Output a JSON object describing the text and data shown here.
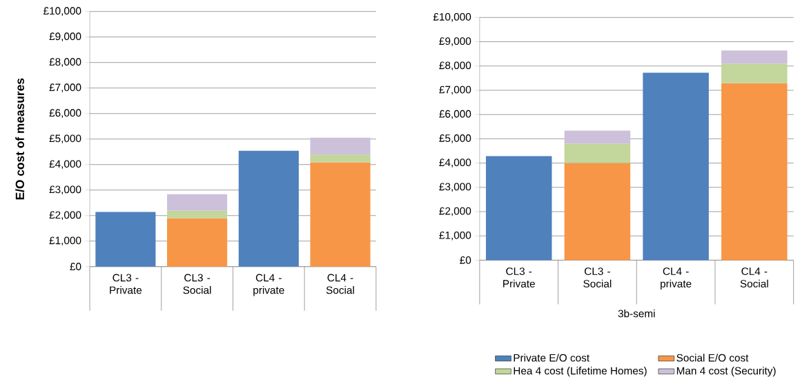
{
  "chart_data": [
    {
      "type": "bar",
      "stacked": true,
      "ylabel": "E/O cost of measures",
      "categories": [
        "CL3 - Private",
        "CL3 - Social",
        "CL4 - private",
        "CL4 - Social"
      ],
      "series": [
        {
          "color": "#4f81bd",
          "values": [
            2140,
            null,
            4540,
            null
          ]
        },
        {
          "color": "#f79646",
          "values": [
            null,
            1890,
            null,
            4090
          ]
        },
        {
          "color": "#c3d69b",
          "values": [
            null,
            300,
            null,
            300
          ]
        },
        {
          "color": "#ccc0da",
          "values": [
            null,
            650,
            null,
            660
          ]
        }
      ],
      "ylim": [
        0,
        10000
      ],
      "yticks": [
        {
          "value": 0,
          "label": "£0"
        },
        {
          "value": 1000,
          "label": "£1,000"
        },
        {
          "value": 2000,
          "label": "£2,000"
        },
        {
          "value": 3000,
          "label": "£3,000"
        },
        {
          "value": 4000,
          "label": "£4,000"
        },
        {
          "value": 5000,
          "label": "£5,000"
        },
        {
          "value": 6000,
          "label": "£6,000"
        },
        {
          "value": 7000,
          "label": "£7,000"
        },
        {
          "value": 8000,
          "label": "£8,000"
        },
        {
          "value": 9000,
          "label": "£9,000"
        },
        {
          "value": 10000,
          "label": "£10,000"
        }
      ],
      "grid": "y"
    },
    {
      "type": "bar",
      "stacked": true,
      "xlabel": "3b-semi",
      "categories": [
        "CL3 - Private",
        "CL3 - Social",
        "CL4 - private",
        "CL4 - Social"
      ],
      "series": [
        {
          "name": "Private E/O cost",
          "color": "#4f81bd",
          "values": [
            4290,
            null,
            7720,
            null
          ]
        },
        {
          "name": "Social E/O cost",
          "color": "#f79646",
          "values": [
            null,
            4000,
            null,
            7290
          ]
        },
        {
          "name": "Hea 4 cost (Lifetime Homes)",
          "color": "#c3d69b",
          "values": [
            null,
            800,
            null,
            800
          ]
        },
        {
          "name": "Man 4 cost (Security)",
          "color": "#ccc0da",
          "values": [
            null,
            540,
            null,
            550
          ]
        }
      ],
      "ylim": [
        0,
        10000
      ],
      "yticks": [
        {
          "value": 0,
          "label": "£0"
        },
        {
          "value": 1000,
          "label": "£1,000"
        },
        {
          "value": 2000,
          "label": "£2,000"
        },
        {
          "value": 3000,
          "label": "£3,000"
        },
        {
          "value": 4000,
          "label": "£4,000"
        },
        {
          "value": 5000,
          "label": "£5,000"
        },
        {
          "value": 6000,
          "label": "£6,000"
        },
        {
          "value": 7000,
          "label": "£7,000"
        },
        {
          "value": 8000,
          "label": "£8,000"
        },
        {
          "value": 9000,
          "label": "£9,000"
        },
        {
          "value": 10000,
          "label": "£10,000"
        }
      ],
      "grid": "y",
      "legend": "bottom"
    }
  ]
}
